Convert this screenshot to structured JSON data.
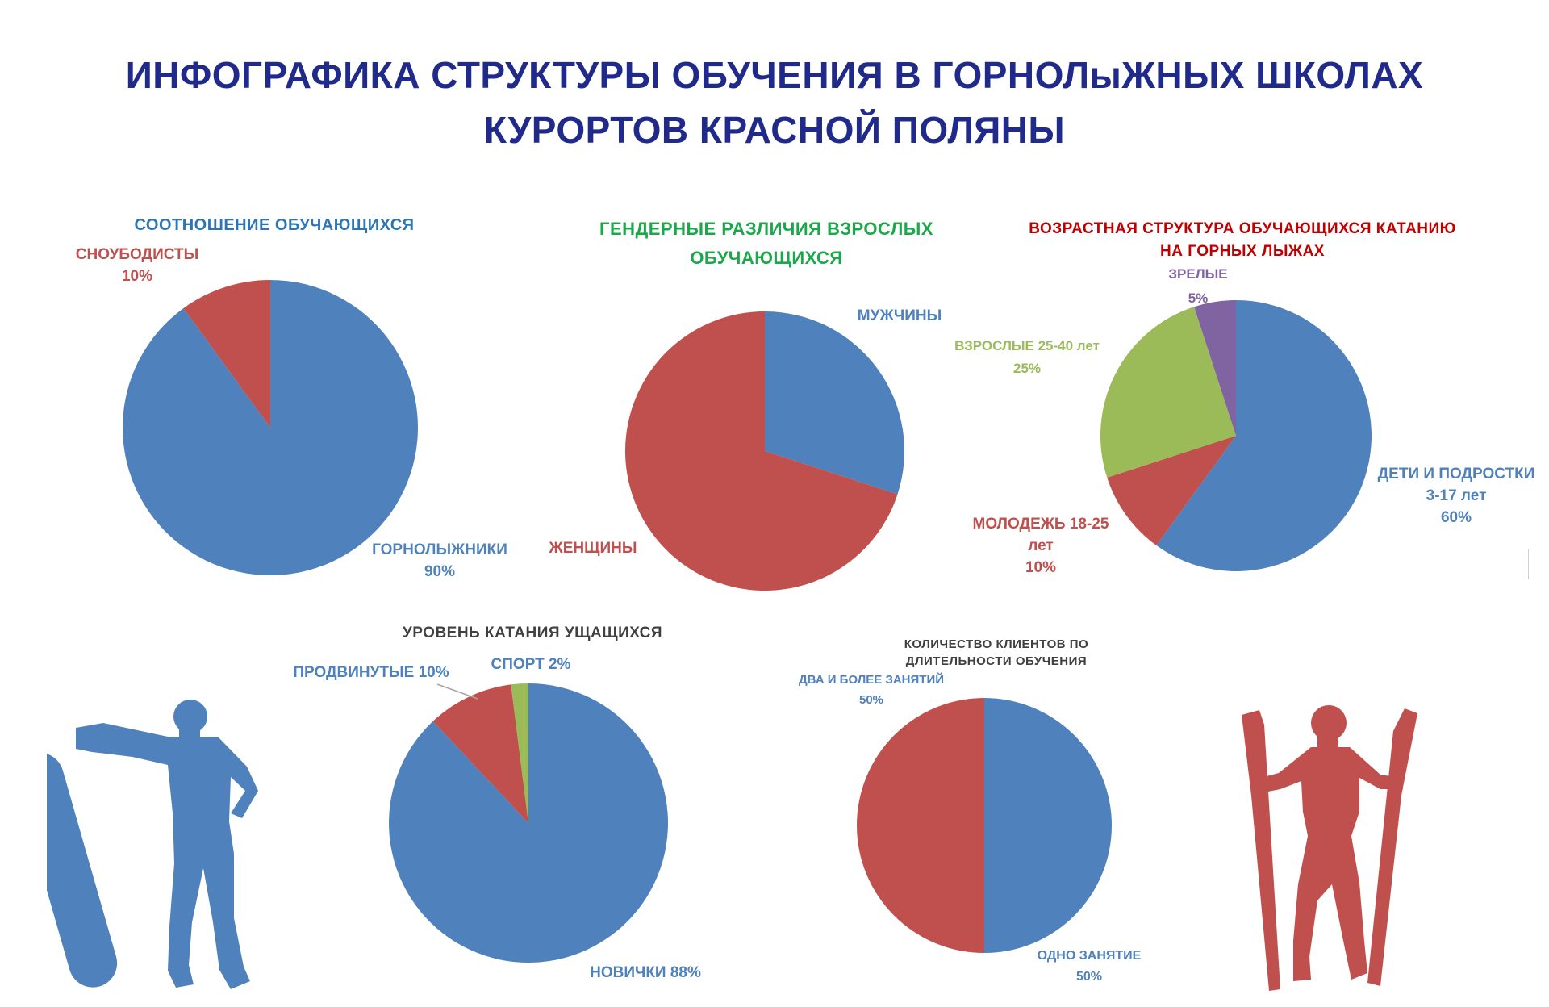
{
  "title": {
    "line1": "ИНФОГРАФИКА СТРУКТУРЫ ОБУЧЕНИЯ В ГОРНОЛыЖНЫХ ШКОЛАХ",
    "line2": "КУРОРТОВ КРАСНОЙ ПОЛЯНЫ"
  },
  "colors": {
    "title": "#1f2a8a",
    "blue": "#4f81bd",
    "red": "#c0504d",
    "green": "#9bbb59",
    "purple": "#8064a2"
  },
  "chart_data": [
    {
      "type": "pie",
      "title": "СООТНОШЕНИЕ ОБУЧАЮЩИХСЯ",
      "slices": [
        {
          "name": "ГОРНОЛЫЖНИКИ",
          "value": 90,
          "label": "90%",
          "color": "#4f81bd"
        },
        {
          "name": "СНОУБОДИСТЫ",
          "value": 10,
          "label": "10%",
          "color": "#c0504d"
        }
      ]
    },
    {
      "type": "pie",
      "title_lines": [
        "ГЕНДЕРНЫЕ РАЗЛИЧИЯ ВЗРОСЛЫХ",
        "ОБУЧАЮЩИХСЯ"
      ],
      "slices": [
        {
          "name": "МУЖЧИНЫ",
          "value": 30,
          "label": "",
          "color": "#4f81bd"
        },
        {
          "name": "ЖЕНЩИНЫ",
          "value": 70,
          "label": "",
          "color": "#c0504d"
        }
      ]
    },
    {
      "type": "pie",
      "title_lines": [
        "ВОЗРАСТНАЯ СТРУКТУРА ОБУЧАЮЩИХСЯ КАТАНИЮ",
        "НА ГОРНЫХ ЛЫЖАХ"
      ],
      "slices": [
        {
          "name": "ДЕТИ И ПОДРОСТКИ",
          "sub": "3-17 лет",
          "value": 60,
          "label": "60%",
          "color": "#4f81bd"
        },
        {
          "name": "МОЛОДЕЖЬ 18-25",
          "sub": "лет",
          "value": 10,
          "label": "10%",
          "color": "#c0504d"
        },
        {
          "name": "ВЗРОСЛЫЕ 25-40 лет",
          "value": 25,
          "label": "25%",
          "color": "#9bbb59"
        },
        {
          "name": "ЗРЕЛЫЕ",
          "value": 5,
          "label": "5%",
          "color": "#8064a2"
        }
      ]
    },
    {
      "type": "pie",
      "title": "УРОВЕНЬ КАТАНИЯ УЩАЩИХСЯ",
      "slices": [
        {
          "name": "НОВИЧКИ",
          "value": 88,
          "label": "НОВИЧКИ 88%",
          "color": "#4f81bd"
        },
        {
          "name": "ПРОДВИНУТЫЕ",
          "value": 10,
          "label": "ПРОДВИНУТЫЕ 10%",
          "color": "#c0504d"
        },
        {
          "name": "СПОРТ",
          "value": 2,
          "label": "СПОРТ 2%",
          "color": "#9bbb59"
        }
      ]
    },
    {
      "type": "pie",
      "title_lines": [
        "КОЛИЧЕСТВО КЛИЕНТОВ ПО",
        "ДЛИТЕЛЬНОСТИ ОБУЧЕНИЯ"
      ],
      "slices": [
        {
          "name": "ОДНО ЗАНЯТИЕ",
          "value": 50,
          "label": "50%",
          "color": "#4f81bd"
        },
        {
          "name": "ДВА И БОЛЕЕ ЗАНЯТИЙ",
          "value": 50,
          "label": "50%",
          "color": "#c0504d"
        }
      ]
    }
  ]
}
